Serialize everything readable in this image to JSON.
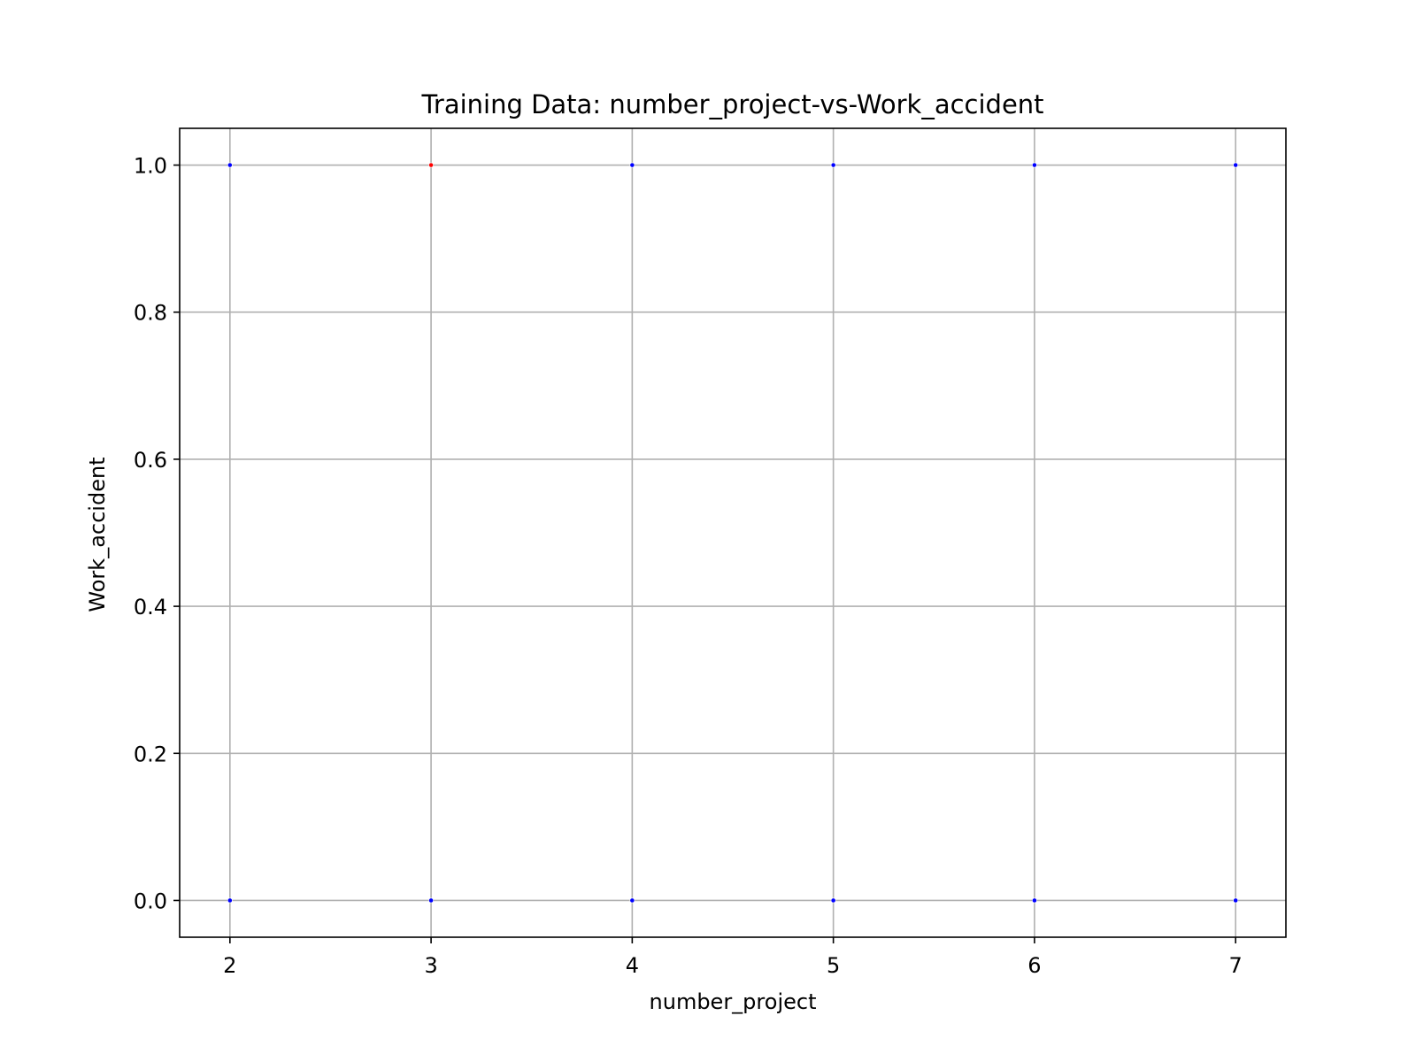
{
  "chart_data": {
    "type": "scatter",
    "title": "Training Data: number_project-vs-Work_accident",
    "xlabel": "number_project",
    "ylabel": "Work_accident",
    "xlim": [
      1.75,
      7.25
    ],
    "ylim": [
      -0.05,
      1.05
    ],
    "xticks": [
      2,
      3,
      4,
      5,
      6,
      7
    ],
    "xtick_labels": [
      "2",
      "3",
      "4",
      "5",
      "6",
      "7"
    ],
    "yticks": [
      0.0,
      0.2,
      0.4,
      0.6,
      0.8,
      1.0
    ],
    "ytick_labels": [
      "0.0",
      "0.2",
      "0.4",
      "0.6",
      "0.8",
      "1.0"
    ],
    "grid": true,
    "colors": {
      "blue": "#0000ff",
      "red": "#ff0000",
      "grid": "#b0b0b0"
    },
    "points": [
      {
        "x": 2,
        "y": 1,
        "color": "#0000ff"
      },
      {
        "x": 3,
        "y": 1,
        "color": "#ff0000"
      },
      {
        "x": 4,
        "y": 1,
        "color": "#0000ff"
      },
      {
        "x": 5,
        "y": 1,
        "color": "#0000ff"
      },
      {
        "x": 6,
        "y": 1,
        "color": "#0000ff"
      },
      {
        "x": 7,
        "y": 1,
        "color": "#0000ff"
      },
      {
        "x": 2,
        "y": 0,
        "color": "#0000ff"
      },
      {
        "x": 3,
        "y": 0,
        "color": "#0000ff"
      },
      {
        "x": 4,
        "y": 0,
        "color": "#0000ff"
      },
      {
        "x": 5,
        "y": 0,
        "color": "#0000ff"
      },
      {
        "x": 6,
        "y": 0,
        "color": "#0000ff"
      },
      {
        "x": 7,
        "y": 0,
        "color": "#0000ff"
      }
    ]
  }
}
